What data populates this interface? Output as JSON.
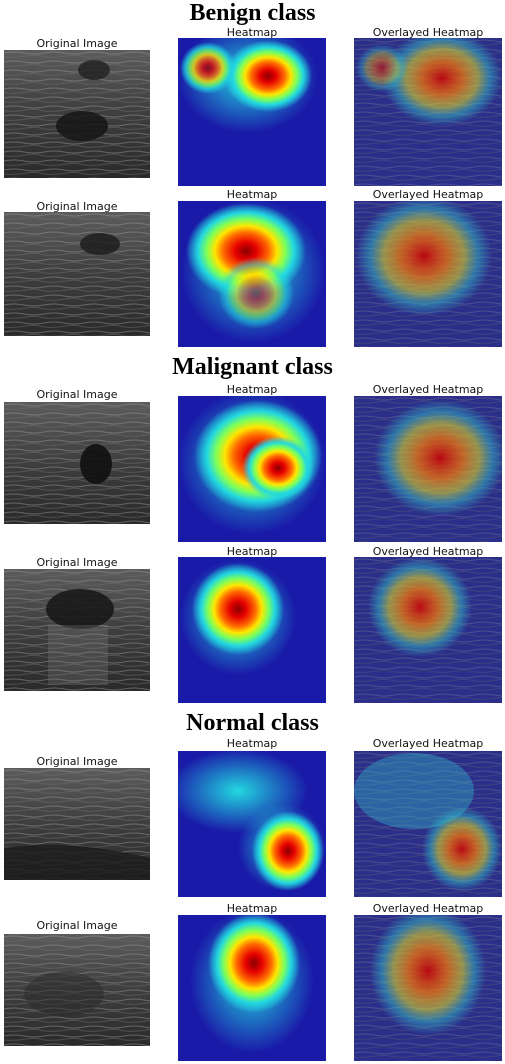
{
  "sections": [
    {
      "title": "Benign class",
      "rows": [
        {
          "labels": [
            "Original Image",
            "Heatmap",
            "Overlayed Heatmap"
          ]
        },
        {
          "labels": [
            "Original Image",
            "Heatmap",
            "Overlayed Heatmap"
          ]
        }
      ]
    },
    {
      "title": "Malignant class",
      "rows": [
        {
          "labels": [
            "Original Image",
            "Heatmap",
            "Overlayed Heatmap"
          ]
        },
        {
          "labels": [
            "Original Image",
            "Heatmap",
            "Overlayed Heatmap"
          ]
        }
      ]
    },
    {
      "title": "Normal class",
      "rows": [
        {
          "labels": [
            "Original Image",
            "Heatmap",
            "Overlayed Heatmap"
          ]
        },
        {
          "labels": [
            "Original Image",
            "Heatmap",
            "Overlayed Heatmap"
          ]
        }
      ]
    }
  ],
  "colors": {
    "heat_low": "#1a1aa8",
    "heat_mid": "#22d8e0",
    "heat_high": "#ff1a00",
    "ultrasound": "#4a4a4a"
  }
}
